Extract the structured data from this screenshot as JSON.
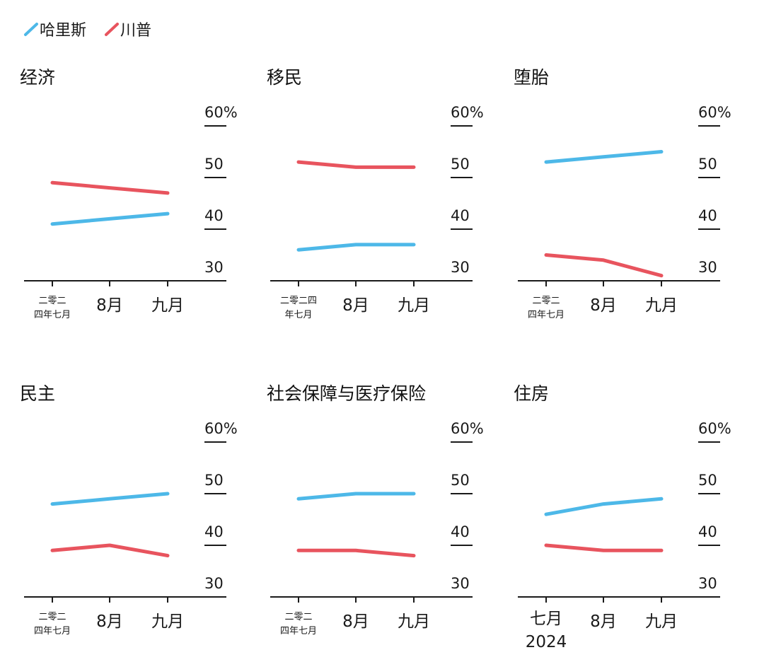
{
  "legend": [
    {
      "name": "哈里斯",
      "color": "#4db8e8"
    },
    {
      "name": "川普",
      "color": "#e8545e"
    }
  ],
  "chart_data": [
    {
      "type": "line",
      "title": "经济",
      "categories": [
        [
          "二零二",
          "四年七月"
        ],
        [
          "8月"
        ],
        [
          "九月"
        ]
      ],
      "yticks": [
        "60%",
        "50",
        "40",
        "30"
      ],
      "ylim": [
        30,
        60
      ],
      "series": [
        {
          "name": "哈里斯",
          "values": [
            41,
            42,
            43
          ]
        },
        {
          "name": "川普",
          "values": [
            49,
            48,
            47
          ]
        }
      ]
    },
    {
      "type": "line",
      "title": "移民",
      "categories": [
        [
          "二零二四",
          "年七月"
        ],
        [
          "8月"
        ],
        [
          "九月"
        ]
      ],
      "yticks": [
        "60%",
        "50",
        "40",
        "30"
      ],
      "ylim": [
        30,
        60
      ],
      "series": [
        {
          "name": "哈里斯",
          "values": [
            36,
            37,
            37
          ]
        },
        {
          "name": "川普",
          "values": [
            53,
            52,
            52
          ]
        }
      ]
    },
    {
      "type": "line",
      "title": "堕胎",
      "categories": [
        [
          "二零二",
          "四年七月"
        ],
        [
          "8月"
        ],
        [
          "九月"
        ]
      ],
      "yticks": [
        "60%",
        "50",
        "40",
        "30"
      ],
      "ylim": [
        30,
        60
      ],
      "series": [
        {
          "name": "哈里斯",
          "values": [
            53,
            54,
            55
          ]
        },
        {
          "name": "川普",
          "values": [
            35,
            34,
            31
          ]
        }
      ]
    },
    {
      "type": "line",
      "title": "民主",
      "categories": [
        [
          "二零二",
          "四年七月"
        ],
        [
          "8月"
        ],
        [
          "九月"
        ]
      ],
      "yticks": [
        "60%",
        "50",
        "40",
        "30"
      ],
      "ylim": [
        30,
        60
      ],
      "series": [
        {
          "name": "哈里斯",
          "values": [
            48,
            49,
            50
          ]
        },
        {
          "name": "川普",
          "values": [
            39,
            40,
            38
          ]
        }
      ]
    },
    {
      "type": "line",
      "title": "社会保障与医疗保险",
      "categories": [
        [
          "二零二",
          "四年七月"
        ],
        [
          "8月"
        ],
        [
          "九月"
        ]
      ],
      "yticks": [
        "60%",
        "50",
        "40",
        "30"
      ],
      "ylim": [
        30,
        60
      ],
      "series": [
        {
          "name": "哈里斯",
          "values": [
            49,
            50,
            50
          ]
        },
        {
          "name": "川普",
          "values": [
            39,
            39,
            38
          ]
        }
      ]
    },
    {
      "type": "line",
      "title": "住房",
      "categories": [
        [
          "七月",
          "2024"
        ],
        [
          "8月"
        ],
        [
          "九月"
        ]
      ],
      "yticks": [
        "60%",
        "50",
        "40",
        "30"
      ],
      "ylim": [
        30,
        60
      ],
      "series": [
        {
          "name": "哈里斯",
          "values": [
            46,
            48,
            49
          ]
        },
        {
          "name": "川普",
          "values": [
            40,
            39,
            39
          ]
        }
      ]
    }
  ]
}
